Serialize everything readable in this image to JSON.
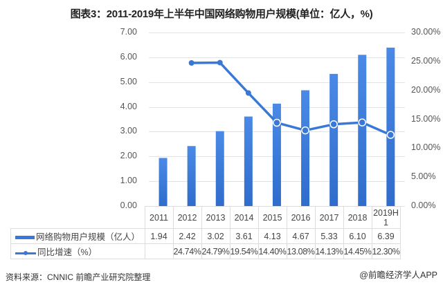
{
  "title": "图表3：2011-2019年上半年中国网络购物用户规模(单位：亿人，%)",
  "left_axis_ticks": [
    "7.00",
    "6.00",
    "5.00",
    "4.00",
    "3.00",
    "2.00",
    "1.00",
    "0.00"
  ],
  "right_axis_ticks": [
    "30.00%",
    "25.00%",
    "20.00%",
    "15.00%",
    "10.00%",
    "5.00%",
    "0.00%"
  ],
  "table": {
    "categories": [
      "2011",
      "2012",
      "2013",
      "2014",
      "2015",
      "2016",
      "2017",
      "2018",
      "2019H\n1"
    ],
    "row1_label": "网络购物用户规模（亿人）",
    "row1_values": [
      "1.94",
      "2.42",
      "3.02",
      "3.61",
      "4.13",
      "4.67",
      "5.33",
      "6.10",
      "6.39"
    ],
    "row2_label": "同比增速（%）",
    "row2_values": [
      "",
      "24.74%",
      "24.79%",
      "19.54%",
      "14.40%",
      "13.08%",
      "14.13%",
      "14.45%",
      "12.30%"
    ]
  },
  "source": "资料来源：CNNIC 前瞻产业研究院整理",
  "credit": "@前瞻经济学人APP",
  "colors": {
    "bar": "#3a78d8",
    "line": "#3a78d8",
    "grid": "#e3e3e3"
  },
  "chart_data": {
    "type": "bar",
    "title": "图表3：2011-2019年上半年中国网络购物用户规模(单位：亿人，%)",
    "categories": [
      "2011",
      "2012",
      "2013",
      "2014",
      "2015",
      "2016",
      "2017",
      "2018",
      "2019H1"
    ],
    "series": [
      {
        "name": "网络购物用户规模（亿人）",
        "type": "bar",
        "axis": "left",
        "values": [
          1.94,
          2.42,
          3.02,
          3.61,
          4.13,
          4.67,
          5.33,
          6.1,
          6.39
        ]
      },
      {
        "name": "同比增速（%）",
        "type": "line",
        "axis": "right",
        "values": [
          null,
          24.74,
          24.79,
          19.54,
          14.4,
          13.08,
          14.13,
          14.45,
          12.3
        ]
      }
    ],
    "xlabel": "",
    "ylabel": "亿人",
    "ylim": [
      0,
      7
    ],
    "y2label": "%",
    "y2lim": [
      0,
      30
    ],
    "grid": true,
    "legend_position": "table-bottom",
    "source": "资料来源：CNNIC 前瞻产业研究院整理"
  }
}
